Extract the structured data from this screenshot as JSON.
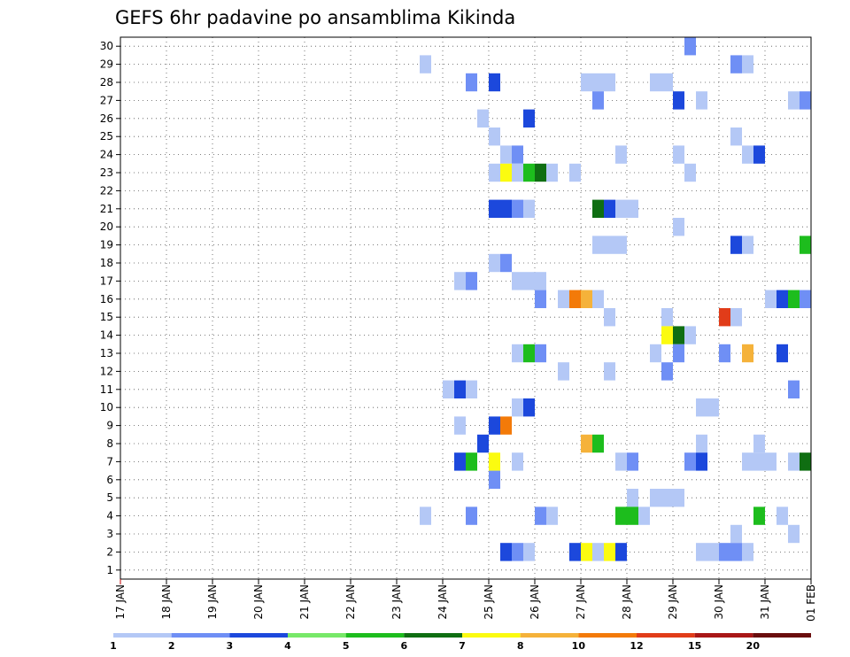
{
  "chart_data": {
    "type": "heatmap",
    "title": "GEFS 6hr padavine po ansamblima Kikinda",
    "xlabel": "",
    "ylabel": "",
    "x_tick_labels": [
      "17 JAN",
      "18 JAN",
      "19 JAN",
      "20 JAN",
      "21 JAN",
      "22 JAN",
      "23 JAN",
      "24 JAN",
      "25 JAN",
      "26 JAN",
      "27 JAN",
      "28 JAN",
      "29 JAN",
      "30 JAN",
      "31 JAN",
      "01 FEB"
    ],
    "x_range_steps": [
      0,
      60
    ],
    "steps_per_day": 4,
    "y_tick_labels": [
      "1",
      "2",
      "3",
      "4",
      "5",
      "6",
      "7",
      "8",
      "9",
      "10",
      "11",
      "12",
      "13",
      "14",
      "15",
      "16",
      "17",
      "18",
      "19",
      "20",
      "21",
      "22",
      "23",
      "24",
      "25",
      "26",
      "27",
      "28",
      "29",
      "30"
    ],
    "ylim": [
      0,
      30
    ],
    "grid": true,
    "legend": {
      "placement": "bottom",
      "thresholds": [
        "1",
        "2",
        "3",
        "4",
        "5",
        "6",
        "7",
        "8",
        "10",
        "12",
        "15",
        "20"
      ],
      "colors": [
        "#b4c8f6",
        "#6f8ff5",
        "#1c48dc",
        "#77e868",
        "#1dbd1d",
        "#0f6e12",
        "#fbfb10",
        "#f5b23a",
        "#f37a09",
        "#e13c19",
        "#a91717",
        "#6a0d0d"
      ]
    },
    "cells": [
      [
        29,
        27,
        1
      ],
      [
        30,
        50,
        2
      ],
      [
        29,
        54,
        2
      ],
      [
        29,
        55,
        1
      ],
      [
        28,
        31,
        2
      ],
      [
        28,
        33,
        3
      ],
      [
        28,
        41,
        1
      ],
      [
        28,
        42,
        1
      ],
      [
        28,
        43,
        1
      ],
      [
        28,
        47,
        1
      ],
      [
        28,
        48,
        1
      ],
      [
        27,
        42,
        2
      ],
      [
        27,
        49,
        3
      ],
      [
        27,
        51,
        1
      ],
      [
        27,
        59,
        1
      ],
      [
        27,
        60,
        2
      ],
      [
        26,
        32,
        1
      ],
      [
        26,
        36,
        3
      ],
      [
        25,
        33,
        1
      ],
      [
        25,
        54,
        1
      ],
      [
        24,
        34,
        1
      ],
      [
        24,
        35,
        2
      ],
      [
        24,
        44,
        1
      ],
      [
        24,
        49,
        1
      ],
      [
        24,
        55,
        1
      ],
      [
        24,
        56,
        3
      ],
      [
        23,
        33,
        1
      ],
      [
        23,
        34,
        7
      ],
      [
        23,
        35,
        1
      ],
      [
        23,
        36,
        5
      ],
      [
        23,
        37,
        6
      ],
      [
        23,
        38,
        1
      ],
      [
        23,
        40,
        1
      ],
      [
        23,
        50,
        1
      ],
      [
        21,
        33,
        3
      ],
      [
        21,
        34,
        3
      ],
      [
        21,
        35,
        2
      ],
      [
        21,
        36,
        1
      ],
      [
        21,
        42,
        6
      ],
      [
        21,
        43,
        3
      ],
      [
        21,
        44,
        1
      ],
      [
        21,
        45,
        1
      ],
      [
        20,
        49,
        1
      ],
      [
        19,
        42,
        1
      ],
      [
        19,
        43,
        1
      ],
      [
        19,
        44,
        1
      ],
      [
        19,
        54,
        3
      ],
      [
        19,
        55,
        1
      ],
      [
        19,
        60,
        5
      ],
      [
        18,
        33,
        1
      ],
      [
        18,
        34,
        2
      ],
      [
        17,
        30,
        1
      ],
      [
        17,
        31,
        2
      ],
      [
        17,
        35,
        1
      ],
      [
        17,
        36,
        1
      ],
      [
        17,
        37,
        1
      ],
      [
        16,
        37,
        2
      ],
      [
        16,
        39,
        1
      ],
      [
        16,
        40,
        9
      ],
      [
        16,
        41,
        8
      ],
      [
        16,
        42,
        1
      ],
      [
        16,
        57,
        1
      ],
      [
        16,
        58,
        3
      ],
      [
        16,
        59,
        5
      ],
      [
        16,
        60,
        2
      ],
      [
        15,
        43,
        1
      ],
      [
        15,
        48,
        1
      ],
      [
        15,
        53,
        10
      ],
      [
        15,
        54,
        1
      ],
      [
        14,
        48,
        7
      ],
      [
        14,
        49,
        6
      ],
      [
        14,
        50,
        1
      ],
      [
        13,
        35,
        1
      ],
      [
        13,
        36,
        5
      ],
      [
        13,
        37,
        2
      ],
      [
        13,
        47,
        1
      ],
      [
        13,
        49,
        2
      ],
      [
        13,
        53,
        2
      ],
      [
        13,
        55,
        8
      ],
      [
        13,
        58,
        3
      ],
      [
        12,
        39,
        1
      ],
      [
        12,
        43,
        1
      ],
      [
        12,
        48,
        2
      ],
      [
        11,
        29,
        1
      ],
      [
        11,
        30,
        3
      ],
      [
        11,
        31,
        1
      ],
      [
        11,
        59,
        2
      ],
      [
        10,
        35,
        1
      ],
      [
        10,
        36,
        3
      ],
      [
        10,
        51,
        1
      ],
      [
        10,
        52,
        1
      ],
      [
        9,
        30,
        1
      ],
      [
        9,
        33,
        3
      ],
      [
        9,
        34,
        9
      ],
      [
        8,
        32,
        3
      ],
      [
        8,
        41,
        8
      ],
      [
        8,
        42,
        5
      ],
      [
        8,
        51,
        1
      ],
      [
        8,
        56,
        1
      ],
      [
        7,
        30,
        3
      ],
      [
        7,
        31,
        5
      ],
      [
        7,
        33,
        7
      ],
      [
        7,
        35,
        1
      ],
      [
        7,
        44,
        1
      ],
      [
        7,
        45,
        2
      ],
      [
        7,
        50,
        2
      ],
      [
        7,
        51,
        3
      ],
      [
        7,
        55,
        1
      ],
      [
        7,
        56,
        1
      ],
      [
        7,
        57,
        1
      ],
      [
        7,
        59,
        1
      ],
      [
        7,
        60,
        6
      ],
      [
        6,
        33,
        2
      ],
      [
        5,
        45,
        1
      ],
      [
        5,
        47,
        1
      ],
      [
        5,
        48,
        1
      ],
      [
        5,
        49,
        1
      ],
      [
        4,
        27,
        1
      ],
      [
        4,
        31,
        2
      ],
      [
        4,
        37,
        2
      ],
      [
        4,
        38,
        1
      ],
      [
        4,
        44,
        5
      ],
      [
        4,
        45,
        5
      ],
      [
        4,
        46,
        1
      ],
      [
        4,
        56,
        5
      ],
      [
        4,
        58,
        1
      ],
      [
        3,
        54,
        1
      ],
      [
        3,
        59,
        1
      ],
      [
        2,
        34,
        3
      ],
      [
        2,
        35,
        2
      ],
      [
        2,
        36,
        1
      ],
      [
        2,
        40,
        3
      ],
      [
        2,
        41,
        7
      ],
      [
        2,
        42,
        1
      ],
      [
        2,
        43,
        7
      ],
      [
        2,
        44,
        3
      ],
      [
        2,
        51,
        1
      ],
      [
        2,
        52,
        1
      ],
      [
        2,
        53,
        2
      ],
      [
        2,
        54,
        2
      ],
      [
        2,
        55,
        1
      ]
    ]
  }
}
